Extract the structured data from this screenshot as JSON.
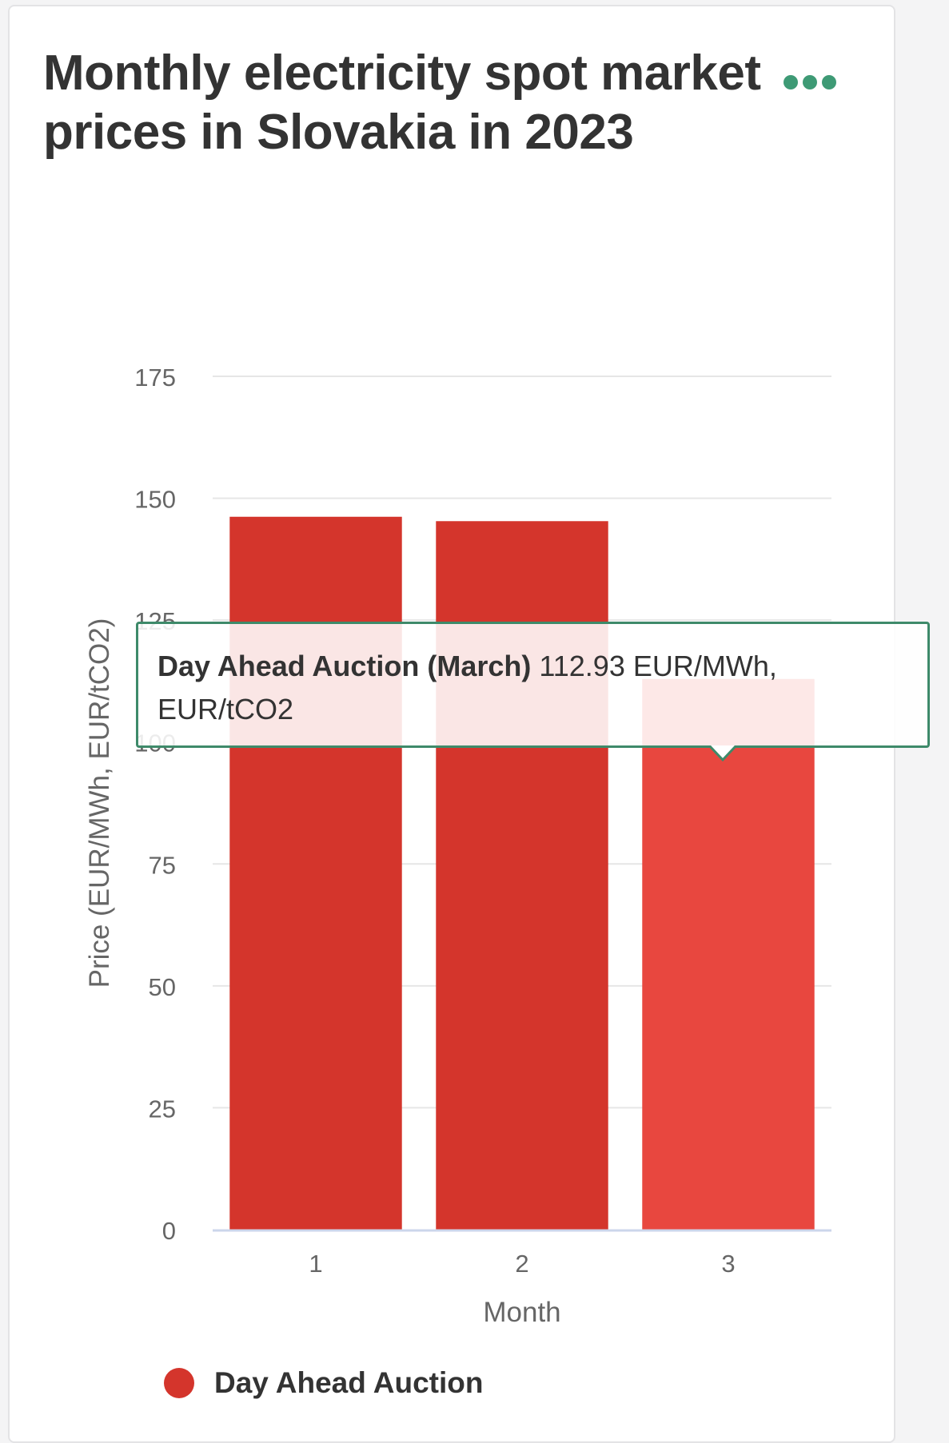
{
  "title": "Monthly electricity spot market prices in Slovakia in 2023",
  "menu_icon": "ellipsis-icon",
  "colors": {
    "bar": "#d4352c",
    "bar_hover": "#e8473f",
    "accent": "#3e9a75",
    "tooltip_border": "#3e8a6a"
  },
  "tooltip": {
    "series": "Day Ahead Auction (March)",
    "value_text": "112.93 EUR/MWh, EUR/tCO2"
  },
  "legend": {
    "label": "Day Ahead Auction"
  },
  "chart_data": {
    "type": "bar",
    "title": "Monthly electricity spot market prices in Slovakia in 2023",
    "xlabel": "Month",
    "ylabel": "Price (EUR/MWh, EUR/tCO2)",
    "categories": [
      "1",
      "2",
      "3"
    ],
    "series": [
      {
        "name": "Day Ahead Auction",
        "values": [
          146.2,
          145.3,
          112.93
        ]
      }
    ],
    "ylim": [
      0,
      175
    ],
    "yticks": [
      0,
      25,
      50,
      75,
      100,
      125,
      150,
      175
    ],
    "grid": true,
    "legend_position": "bottom-left",
    "highlighted_index": 2
  }
}
